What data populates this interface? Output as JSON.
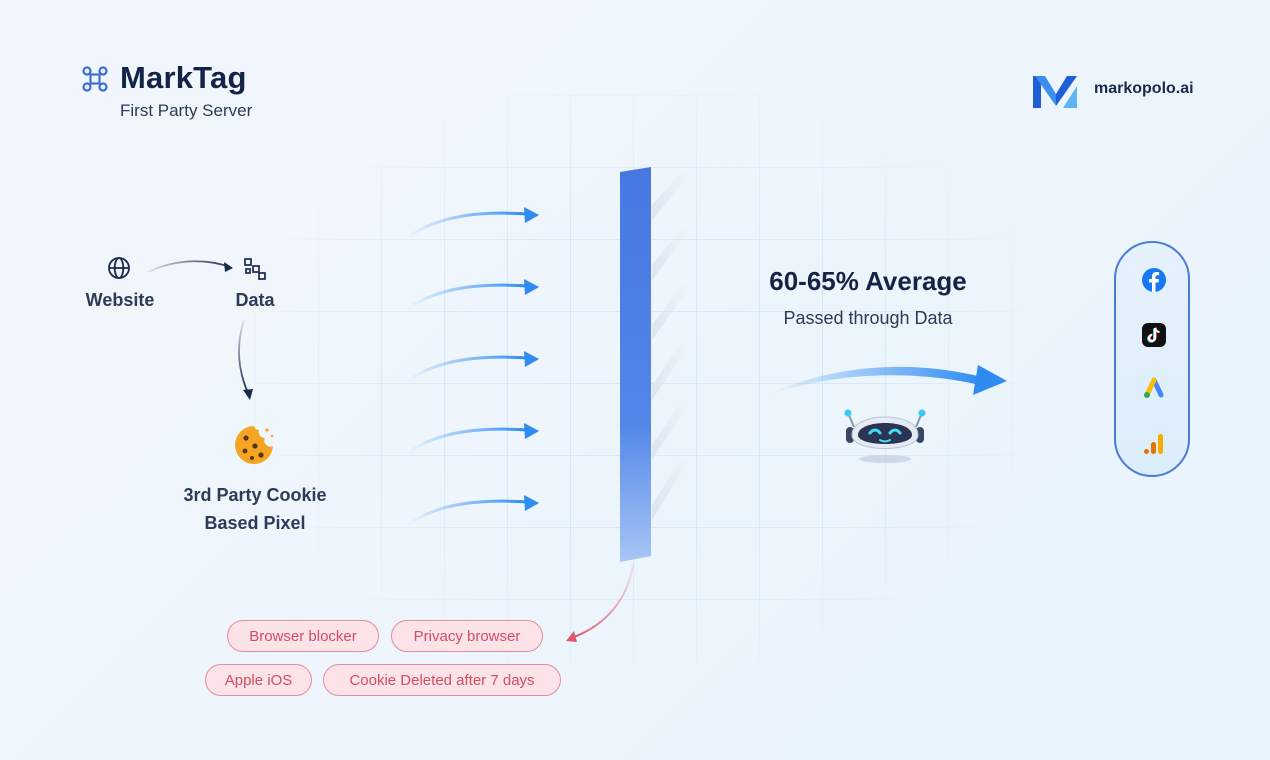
{
  "header": {
    "title": "MarkTag",
    "subtitle": "First Party Server",
    "brand_name": "markopolo.ai",
    "title_icon": "command-icon",
    "brand_icon": "markopolo-logo-icon"
  },
  "flow": {
    "website_label": "Website",
    "data_label": "Data",
    "pixel_label_line1": "3rd Party Cookie",
    "pixel_label_line2": "Based Pixel",
    "website_icon": "globe-icon",
    "data_icon": "data-blocks-icon",
    "pixel_icon": "cookie-icon"
  },
  "result": {
    "headline": "60-65% Average",
    "subline": "Passed through Data",
    "bot_icon": "robot-icon"
  },
  "blockers": [
    "Browser blocker",
    "Privacy browser",
    "Apple iOS",
    "Cookie Deleted after 7 days"
  ],
  "destinations": [
    {
      "name": "facebook-icon"
    },
    {
      "name": "tiktok-icon"
    },
    {
      "name": "google-ads-icon"
    },
    {
      "name": "google-analytics-icon"
    }
  ],
  "colors": {
    "accent_blue": "#2f8bf2",
    "wall_blue": "#4a7fe3",
    "block_red": "#e0566f",
    "text_dark": "#132447"
  }
}
